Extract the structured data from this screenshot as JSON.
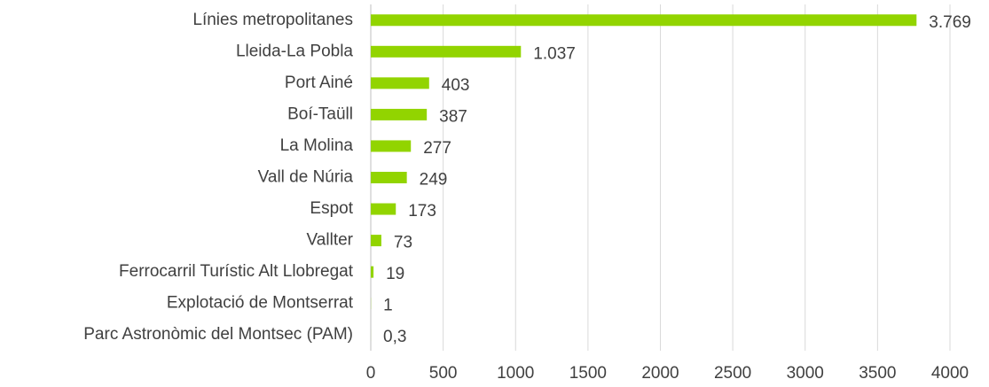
{
  "chart_data": {
    "type": "bar",
    "orientation": "horizontal",
    "categories": [
      "Línies metropolitanes",
      "Lleida-La Pobla",
      "Port Ainé",
      "Boí-Taüll",
      "La Molina",
      "Vall de Núria",
      "Espot",
      "Vallter",
      "Ferrocarril Turístic Alt Llobregat",
      "Explotació de Montserrat",
      "Parc Astronòmic del Montsec (PAM)"
    ],
    "values": [
      3769,
      1037,
      403,
      387,
      277,
      249,
      173,
      73,
      19,
      1,
      0.3
    ],
    "value_labels": [
      "3.769",
      "1.037",
      "403",
      "387",
      "277",
      "249",
      "173",
      "73",
      "19",
      "1",
      "0,3"
    ],
    "color": "#92d400",
    "xlim": [
      0,
      4000
    ],
    "xticks": [
      0,
      500,
      1000,
      1500,
      2000,
      2500,
      3000,
      3500,
      4000
    ],
    "grid": true
  }
}
